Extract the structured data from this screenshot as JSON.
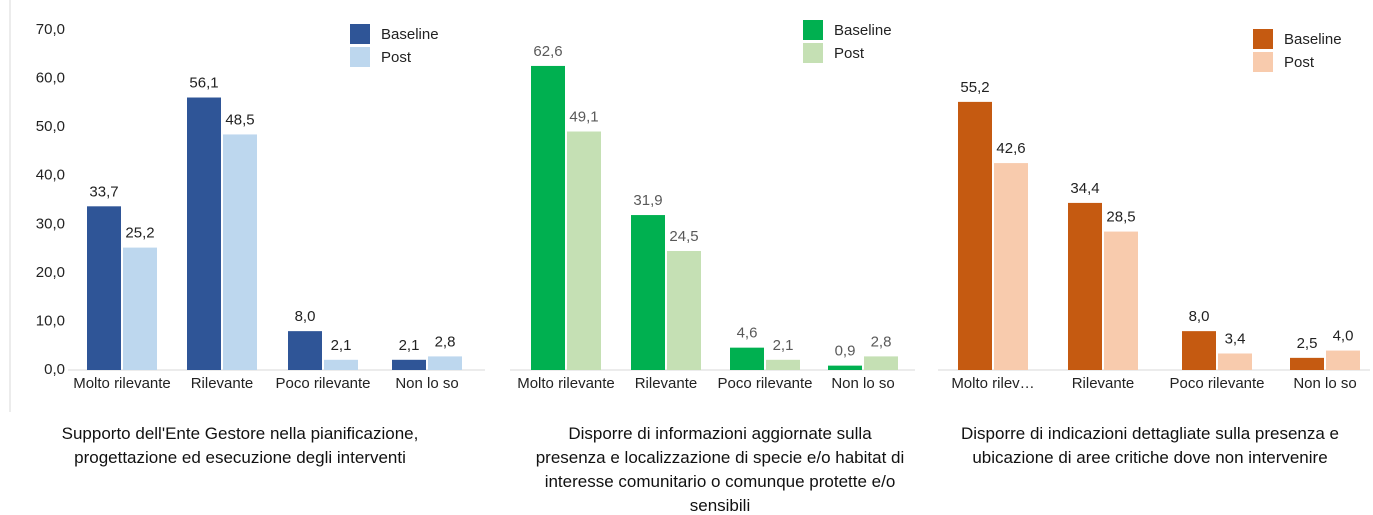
{
  "chart_data": [
    {
      "type": "bar",
      "title": "Supporto dell'Ente Gestore nella pianificazione, progettazione ed esecuzione degli interventi",
      "categories": [
        "Molto rilevante",
        "Rilevante",
        "Poco rilevante",
        "Non lo so"
      ],
      "series": [
        {
          "name": "Baseline",
          "color": "#2f5597",
          "values": [
            33.7,
            56.1,
            8.0,
            2.1
          ],
          "value_labels": [
            "33,7",
            "56,1",
            "8,0",
            "2,1"
          ]
        },
        {
          "name": "Post",
          "color": "#bdd7ee",
          "values": [
            25.2,
            48.5,
            2.1,
            2.8
          ],
          "value_labels": [
            "25,2",
            "48,5",
            "2,1",
            "2,8"
          ]
        }
      ],
      "ylim": [
        0,
        70
      ],
      "yticks": [
        {
          "value": 0,
          "label": "0,0"
        },
        {
          "value": 10,
          "label": "10,0"
        },
        {
          "value": 20,
          "label": "20,0"
        },
        {
          "value": 30,
          "label": "30,0"
        },
        {
          "value": 40,
          "label": "40,0"
        },
        {
          "value": 50,
          "label": "50,0"
        },
        {
          "value": 60,
          "label": "60,0"
        },
        {
          "value": 70,
          "label": "70,0"
        }
      ]
    },
    {
      "type": "bar",
      "title": "Disporre di informazioni aggiornate sulla presenza e localizzazione di specie e/o habitat di interesse comunitario o comunque protette e/o sensibili",
      "categories": [
        "Molto rilevante",
        "Rilevante",
        "Poco rilevante",
        "Non lo so"
      ],
      "series": [
        {
          "name": "Baseline",
          "color": "#00b050",
          "values": [
            62.6,
            31.9,
            4.6,
            0.9
          ],
          "value_labels": [
            "62,6",
            "31,9",
            "4,6",
            "0,9"
          ]
        },
        {
          "name": "Post",
          "color": "#c5e0b4",
          "values": [
            49.1,
            24.5,
            2.1,
            2.8
          ],
          "value_labels": [
            "49,1",
            "24,5",
            "2,1",
            "2,8"
          ]
        }
      ],
      "ylim": [
        0,
        70
      ]
    },
    {
      "type": "bar",
      "title": "Disporre di indicazioni dettagliate sulla presenza e ubicazione di aree critiche dove non intervenire",
      "categories": [
        "Molto rilev…",
        "Rilevante",
        "Poco rilevante",
        "Non lo so"
      ],
      "series": [
        {
          "name": "Baseline",
          "color": "#c55a11",
          "values": [
            55.2,
            34.4,
            8.0,
            2.5
          ],
          "value_labels": [
            "55,2",
            "34,4",
            "8,0",
            "2,5"
          ]
        },
        {
          "name": "Post",
          "color": "#f8cbad",
          "values": [
            42.6,
            28.5,
            3.4,
            4.0
          ],
          "value_labels": [
            "42,6",
            "28,5",
            "3,4",
            "4,0"
          ]
        }
      ],
      "ylim": [
        0,
        70
      ]
    }
  ]
}
